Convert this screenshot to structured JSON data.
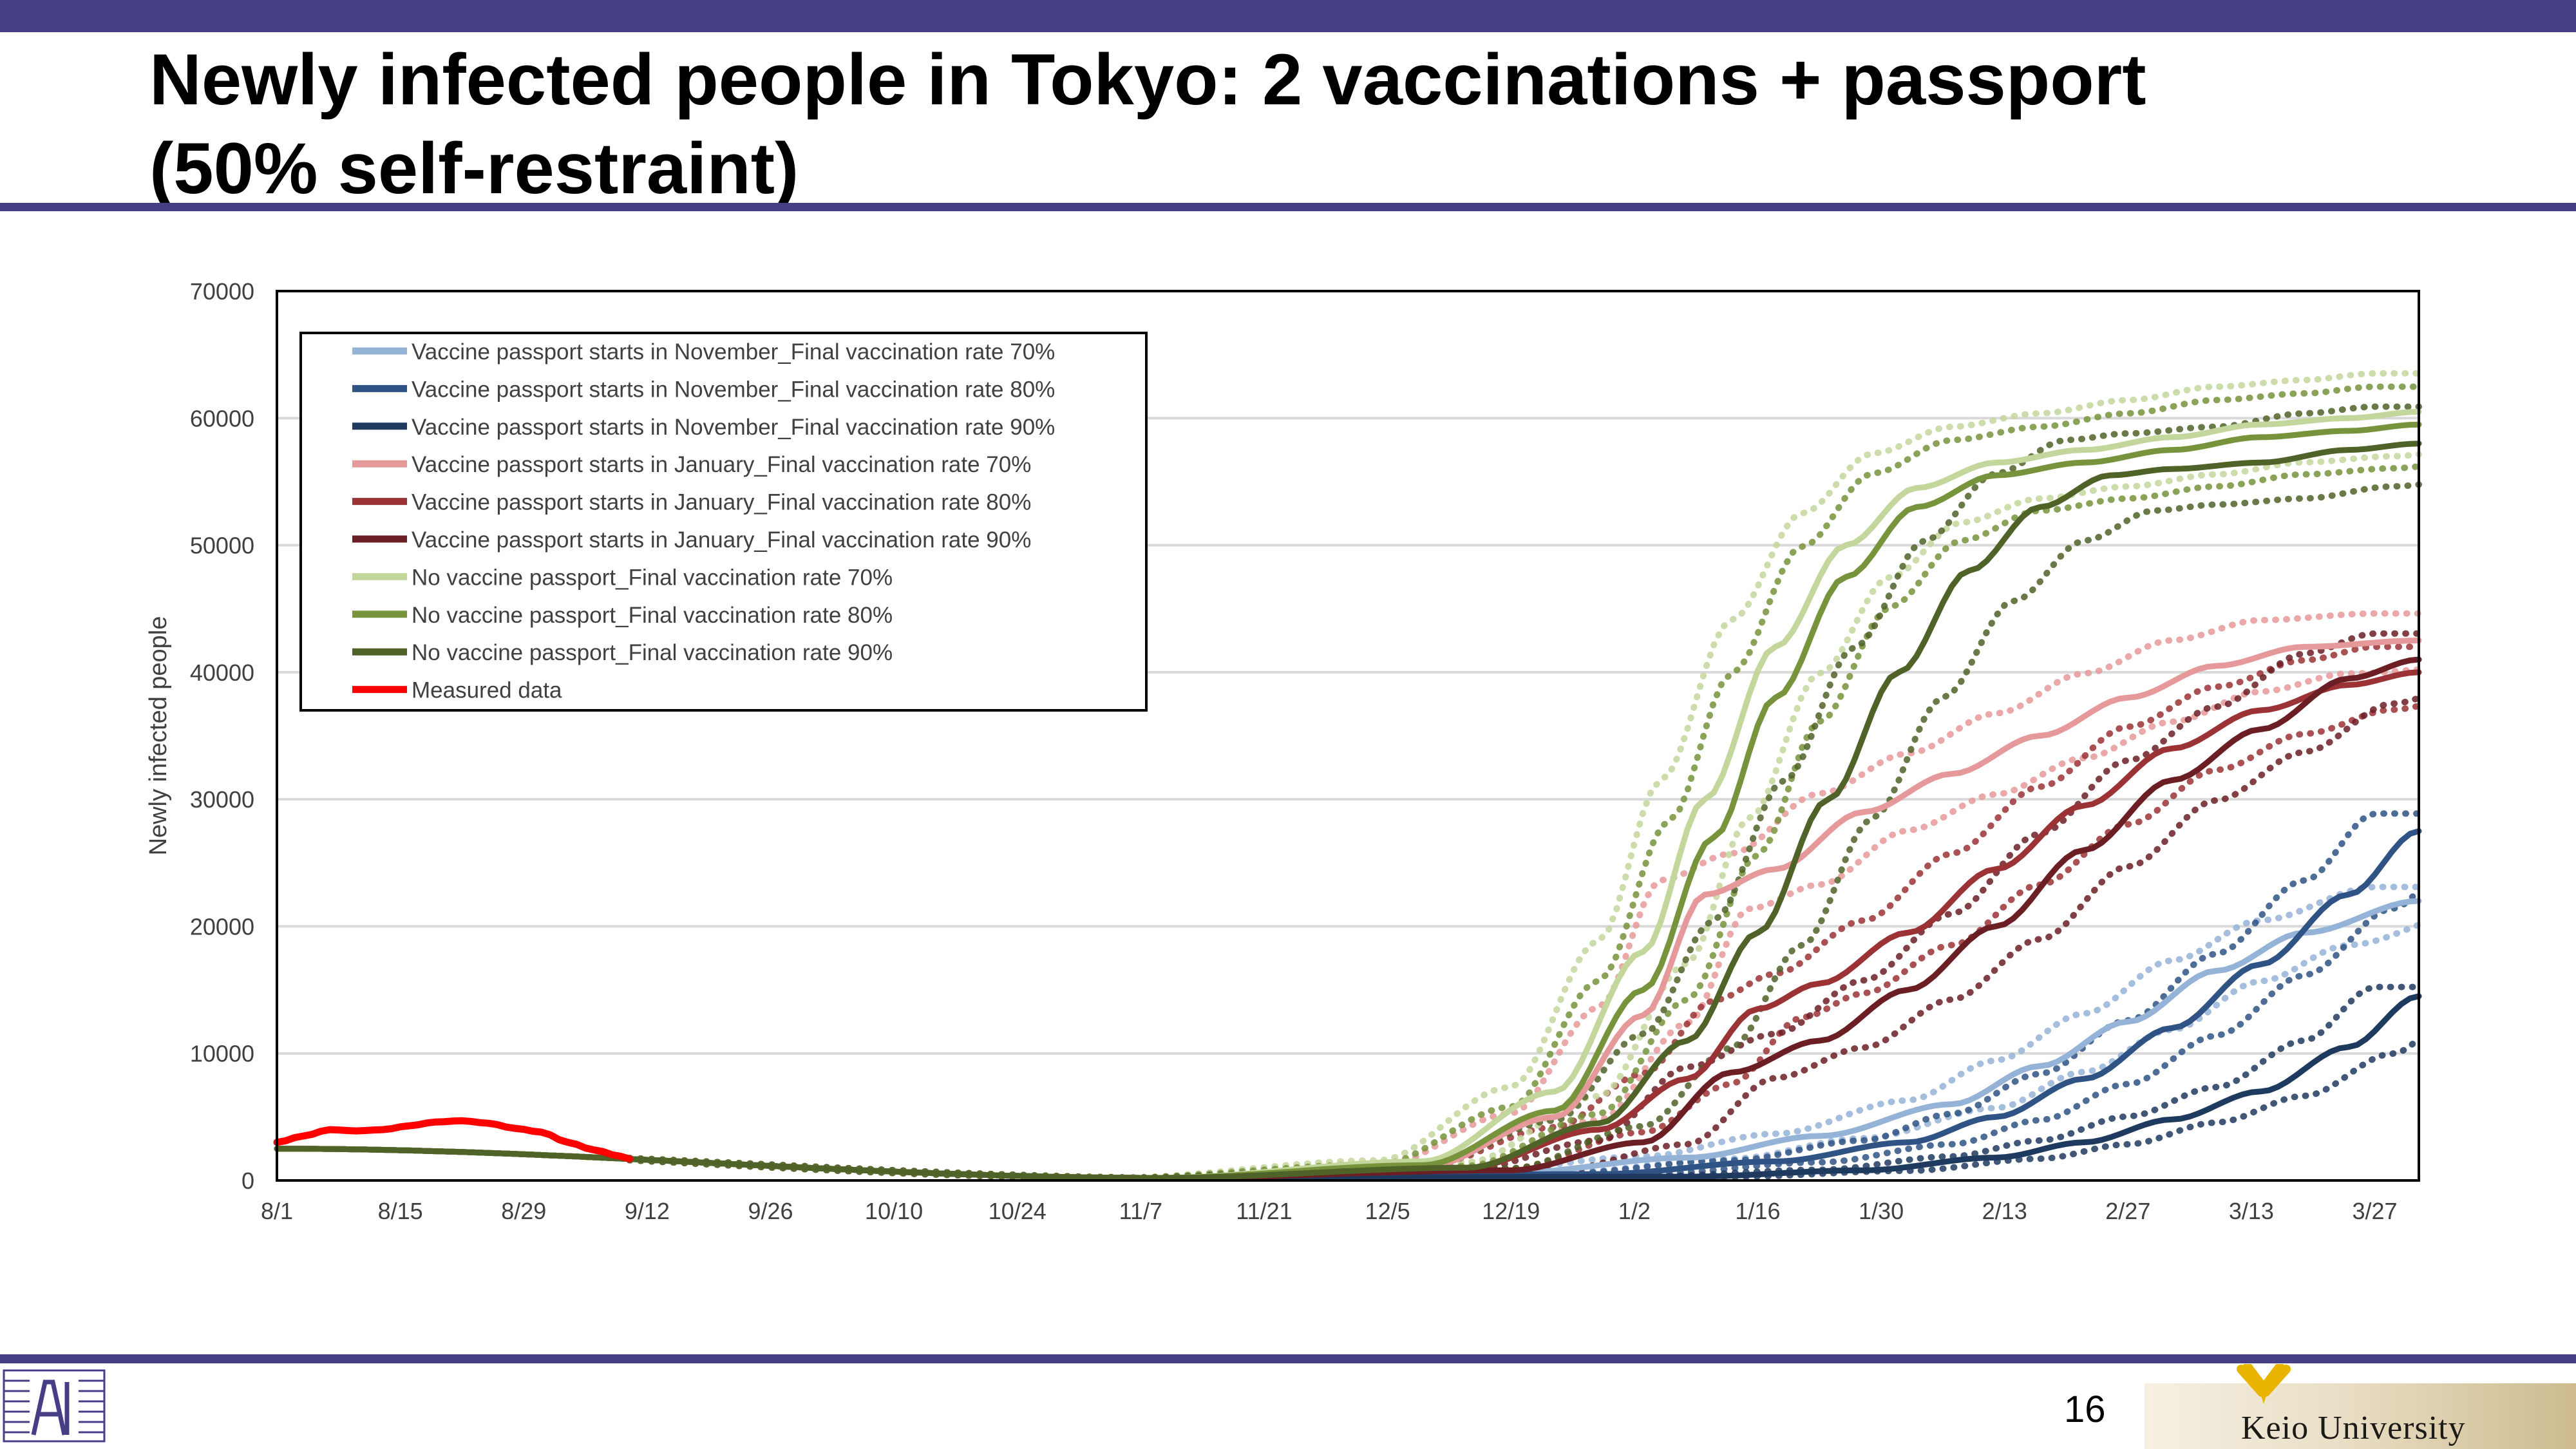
{
  "slide": {
    "title": "Newly infected people in Tokyo: 2 vaccinations + passport (50% self-restraint)",
    "page_number": "16",
    "university": "Keio University",
    "colors": {
      "band": "#463f86"
    }
  },
  "chart_data": {
    "type": "line",
    "title": "",
    "xlabel": "",
    "ylabel": "Newly infected people",
    "ylim": [
      0,
      70000
    ],
    "yticks": [
      0,
      10000,
      20000,
      30000,
      40000,
      50000,
      60000,
      70000
    ],
    "xrange_days": [
      0,
      243
    ],
    "xticks": [
      {
        "day": 0,
        "label": "8/1"
      },
      {
        "day": 14,
        "label": "8/15"
      },
      {
        "day": 28,
        "label": "8/29"
      },
      {
        "day": 42,
        "label": "9/12"
      },
      {
        "day": 56,
        "label": "9/26"
      },
      {
        "day": 70,
        "label": "10/10"
      },
      {
        "day": 84,
        "label": "10/24"
      },
      {
        "day": 98,
        "label": "11/7"
      },
      {
        "day": 112,
        "label": "11/21"
      },
      {
        "day": 126,
        "label": "12/5"
      },
      {
        "day": 140,
        "label": "12/19"
      },
      {
        "day": 154,
        "label": "1/2"
      },
      {
        "day": 168,
        "label": "1/16"
      },
      {
        "day": 182,
        "label": "1/30"
      },
      {
        "day": 196,
        "label": "2/13"
      },
      {
        "day": 210,
        "label": "2/27"
      },
      {
        "day": 224,
        "label": "3/13"
      },
      {
        "day": 238,
        "label": "3/27"
      }
    ],
    "grid": "horizontal",
    "legend_position": "top-left",
    "series": [
      {
        "name": "Vaccine passport starts in November_Final vaccination rate 70%",
        "color": "#95b3d7",
        "x": [
          0,
          100,
          140,
          160,
          175,
          190,
          200,
          210,
          220,
          230,
          243
        ],
        "y": [
          2500,
          200,
          600,
          1800,
          3500,
          6000,
          9000,
          12500,
          16500,
          19500,
          22000
        ]
      },
      {
        "name": "Vaccine passport starts in November_Final vaccination rate 80%",
        "color": "#2f5384",
        "x": [
          0,
          100,
          150,
          170,
          185,
          195,
          205,
          215,
          225,
          235,
          243
        ],
        "y": [
          2500,
          200,
          500,
          1500,
          3000,
          5000,
          8000,
          12000,
          17000,
          22500,
          27500
        ]
      },
      {
        "name": "Vaccine passport starts in November_Final vaccination rate 90%",
        "color": "#1f3a5f",
        "x": [
          0,
          100,
          160,
          180,
          195,
          205,
          215,
          225,
          235,
          243
        ],
        "y": [
          2500,
          200,
          300,
          800,
          1800,
          3000,
          4800,
          7000,
          10500,
          14500
        ]
      },
      {
        "name": "Vaccine passport starts in January_Final vaccination rate 70%",
        "color": "#e6999a",
        "x": [
          0,
          100,
          130,
          145,
          155,
          162,
          170,
          180,
          190,
          200,
          210,
          220,
          230,
          243
        ],
        "y": [
          2500,
          200,
          1000,
          5000,
          13000,
          22500,
          24500,
          29000,
          32000,
          35000,
          38000,
          40500,
          42000,
          42500
        ]
      },
      {
        "name": "Vaccine passport starts in January_Final vaccination rate 80%",
        "color": "#9b3336",
        "x": [
          0,
          100,
          135,
          150,
          160,
          168,
          175,
          185,
          195,
          205,
          215,
          225,
          235,
          243
        ],
        "y": [
          2500,
          200,
          1000,
          4000,
          8000,
          13500,
          15500,
          19500,
          24500,
          29500,
          34000,
          37000,
          39000,
          40000
        ]
      },
      {
        "name": "Vaccine passport starts in January_Final vaccination rate 90%",
        "color": "#6b1f24",
        "x": [
          0,
          100,
          140,
          155,
          165,
          175,
          185,
          195,
          205,
          215,
          225,
          235,
          243
        ],
        "y": [
          2500,
          200,
          800,
          3000,
          8500,
          11000,
          15000,
          20000,
          26000,
          31500,
          35500,
          39500,
          41000
        ]
      },
      {
        "name": "No vaccine passport_Final vaccination rate 70%",
        "color": "#c3d69b",
        "x": [
          0,
          100,
          130,
          145,
          155,
          162,
          170,
          178,
          186,
          195,
          205,
          215,
          225,
          235,
          243
        ],
        "y": [
          2500,
          200,
          1500,
          7000,
          18000,
          30000,
          42000,
          50000,
          54500,
          56500,
          57500,
          58500,
          59500,
          60000,
          60500
        ]
      },
      {
        "name": "No vaccine passport_Final vaccination rate 80%",
        "color": "#77933c",
        "x": [
          0,
          100,
          130,
          145,
          155,
          163,
          170,
          178,
          186,
          195,
          205,
          215,
          225,
          235,
          243
        ],
        "y": [
          2500,
          200,
          1200,
          5500,
          15000,
          27000,
          38000,
          47500,
          53000,
          55500,
          56500,
          57500,
          58500,
          59000,
          59500
        ]
      },
      {
        "name": "No vaccine passport_Final vaccination rate 90%",
        "color": "#4f6228",
        "x": [
          0,
          100,
          135,
          150,
          160,
          168,
          176,
          184,
          192,
          200,
          208,
          215,
          225,
          235,
          243
        ],
        "y": [
          2500,
          200,
          1000,
          4500,
          11000,
          19500,
          30000,
          40000,
          48000,
          53000,
          55500,
          56000,
          56500,
          57500,
          58000
        ]
      },
      {
        "name": "Measured data",
        "color": "#ff0000",
        "x": [
          0,
          3,
          6,
          9,
          12,
          15,
          18,
          21,
          24,
          27,
          30,
          33,
          36,
          39,
          40
        ],
        "y": [
          3000,
          3500,
          4000,
          3900,
          4000,
          4300,
          4600,
          4700,
          4500,
          4100,
          3800,
          3000,
          2400,
          1900,
          1700
        ]
      }
    ]
  }
}
